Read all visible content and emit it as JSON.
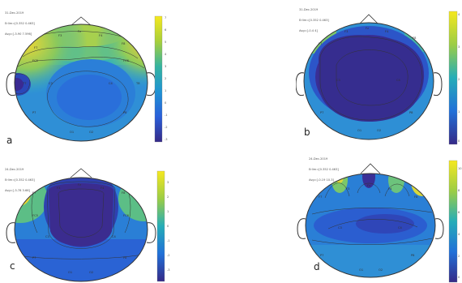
{
  "panels": [
    {
      "id": "a",
      "label": "a",
      "header_lines": [
        "31-Dec-2019",
        "Erlim=[0.352 0.463]",
        "Avg=[-3.90 7.596]"
      ],
      "colorbar_ticks": [
        "7",
        "6",
        "5",
        "4",
        "3",
        "2",
        "1",
        "0",
        "-1",
        "-2",
        "-3"
      ],
      "channel_labels": [
        "Fz",
        "F3",
        "F4",
        "F7",
        "F8",
        "FC5",
        "FC6",
        "C3",
        "C4",
        "T7",
        "T8",
        "P7",
        "P8",
        "O1",
        "O2"
      ]
    },
    {
      "id": "b",
      "label": "b",
      "header_lines": [
        "31-Dec-2019",
        "Erlim=[0.352 0.463]",
        "Avg=[-0.4 4]"
      ],
      "colorbar_ticks": [
        "4",
        "3",
        "2",
        "1",
        "0"
      ],
      "channel_labels": [
        "Fz",
        "F3",
        "F4",
        "F7",
        "F8",
        "C3",
        "C4",
        "P7",
        "P8",
        "O1",
        "O2"
      ]
    },
    {
      "id": "c",
      "label": "c",
      "header_lines": [
        "24-Dec-2019",
        "Erlim=[0.352 0.463]",
        "Avg=[-3.78 3.66]"
      ],
      "colorbar_ticks": [
        "3",
        "2",
        "1",
        "0",
        "-1",
        "-2",
        "-3"
      ],
      "channel_labels": [
        "Fz",
        "F3",
        "F4",
        "F7",
        "F8",
        "FC5",
        "FC6",
        "C3",
        "C4",
        "P7",
        "P8",
        "O1",
        "O2"
      ]
    },
    {
      "id": "d",
      "label": "d",
      "header_lines": [
        "24-Dec-2019",
        "Erlim=[0.352 0.463]",
        "Avg=[-0.19 10.3]"
      ],
      "colorbar_ticks": [
        "10",
        "8",
        "6",
        "4",
        "2",
        "0"
      ],
      "channel_labels": [
        "Fz",
        "F3",
        "F4",
        "F7",
        "F8",
        "C3",
        "C4",
        "P7",
        "P8",
        "O1",
        "O2"
      ]
    }
  ]
}
